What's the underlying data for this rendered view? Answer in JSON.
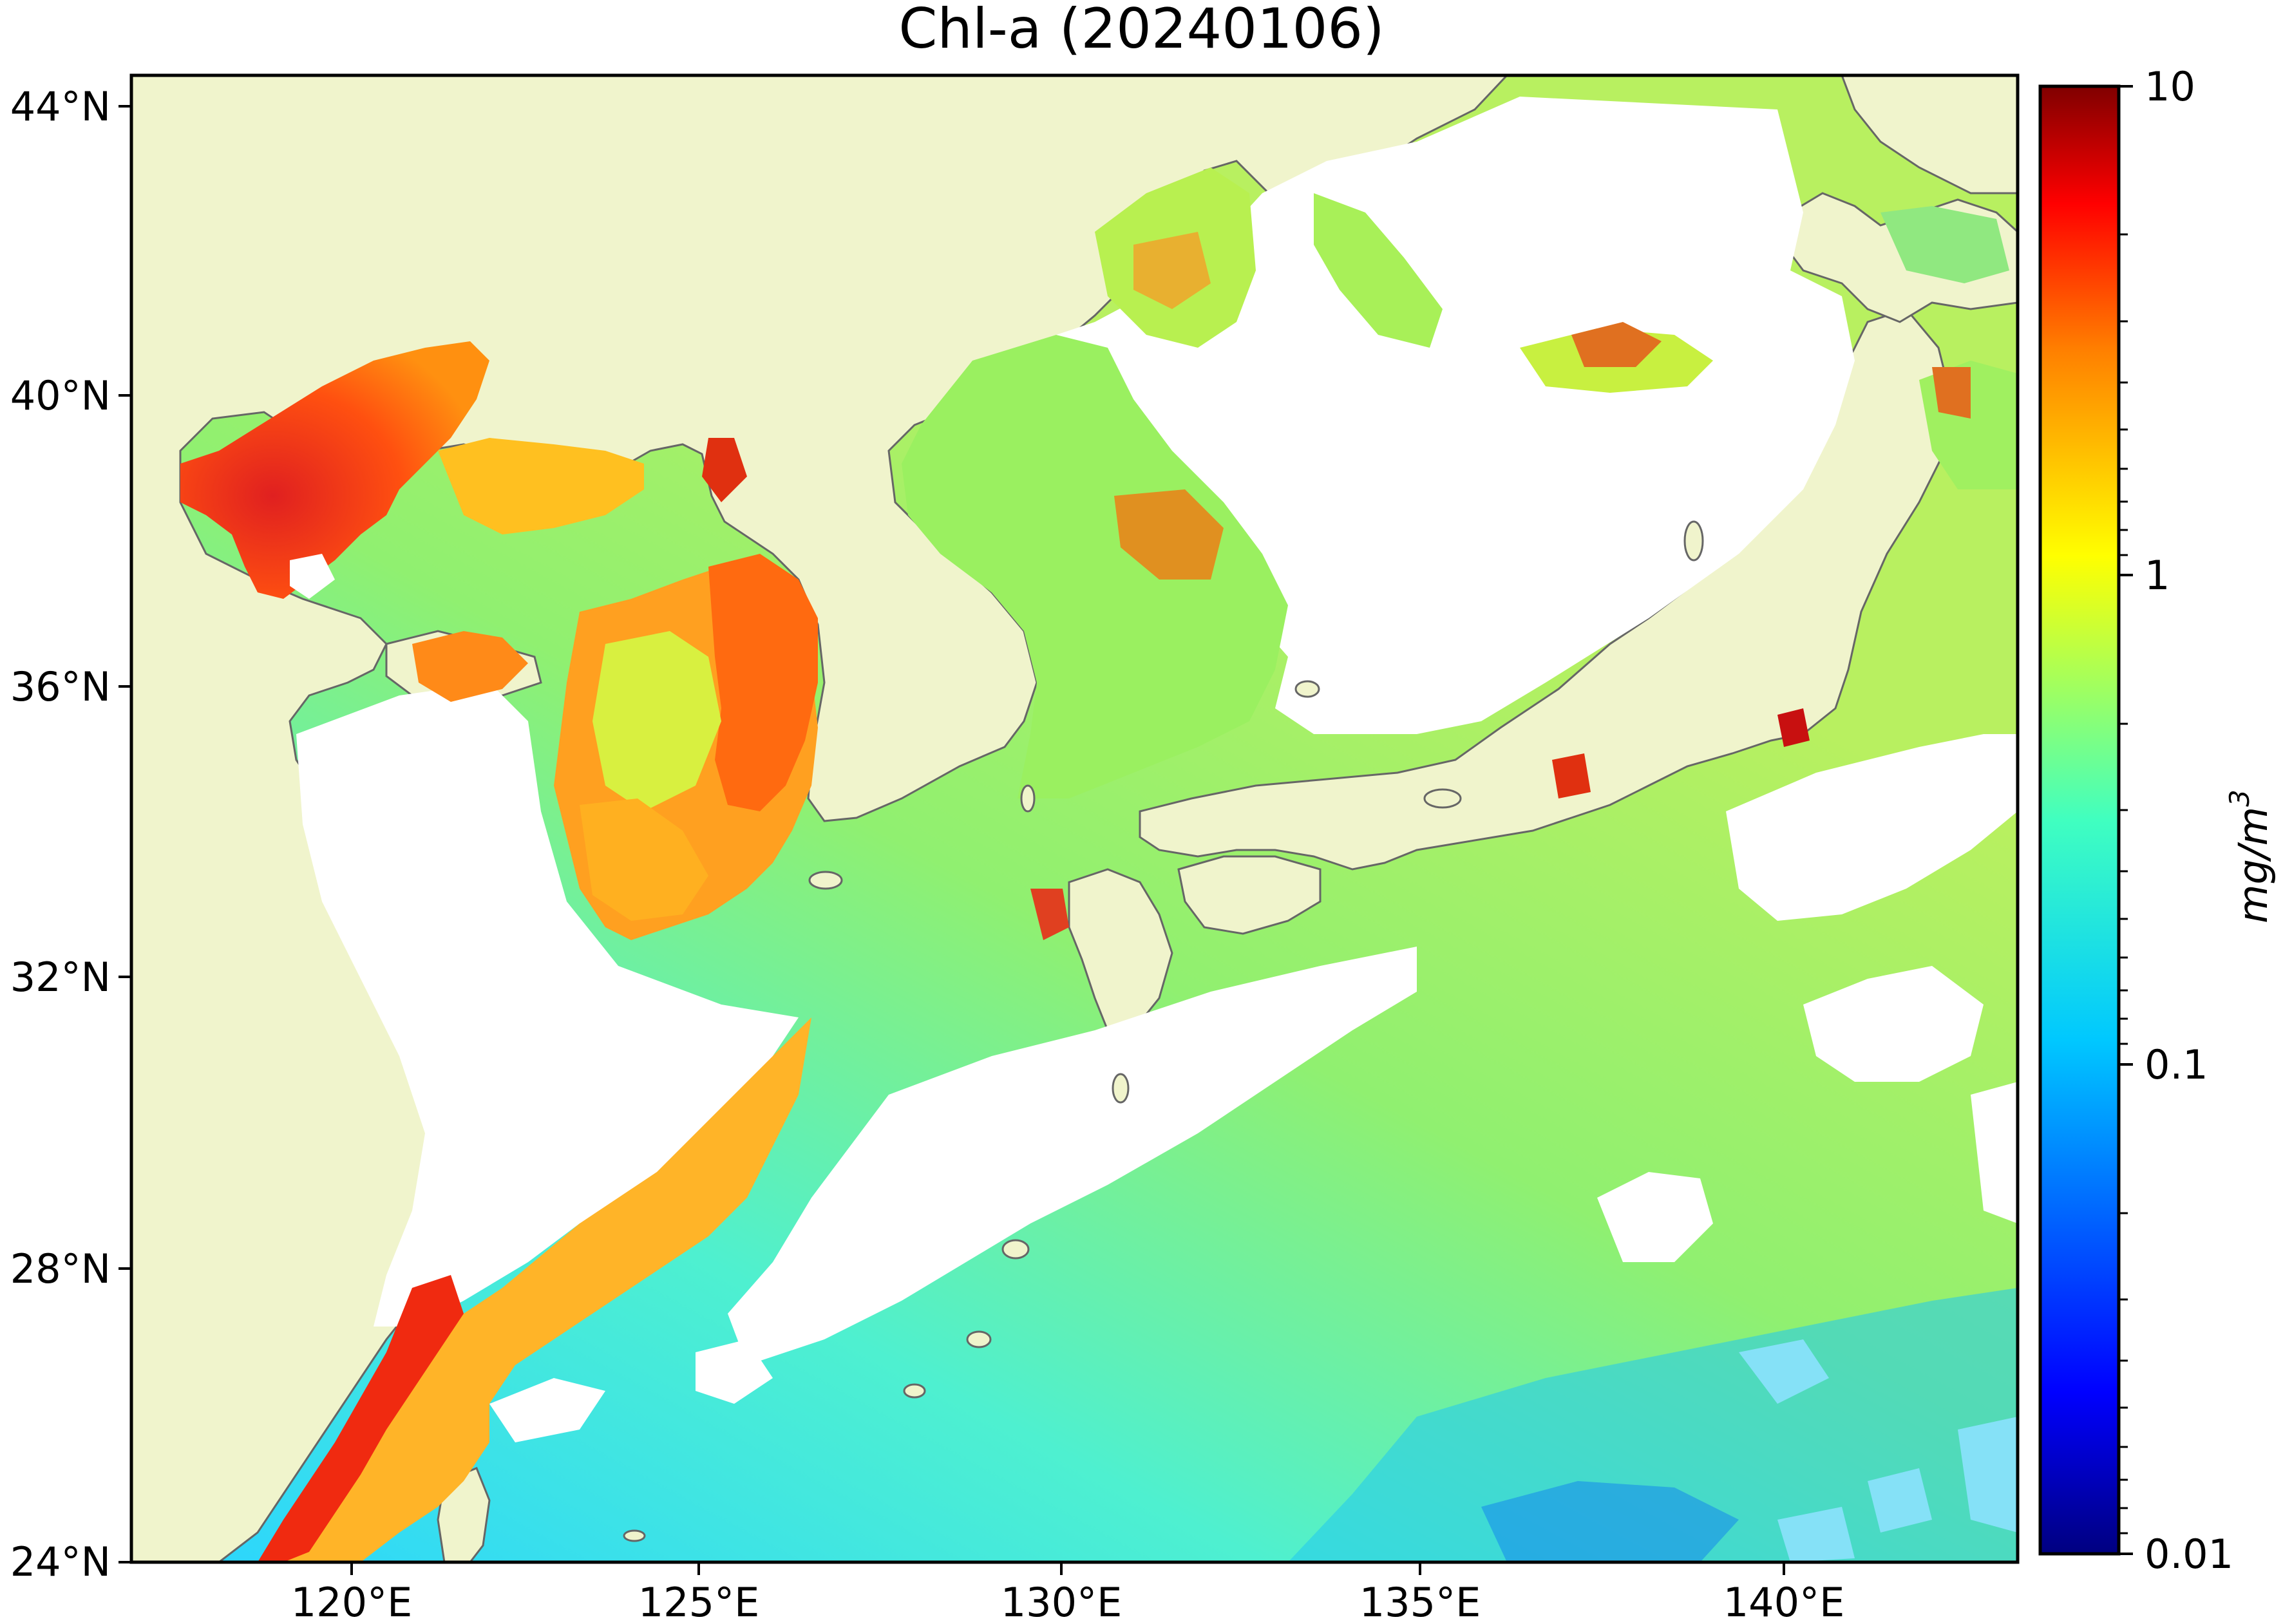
{
  "title": "Chl-a (20240106)",
  "map": {
    "land_color": "#f0f4cc",
    "coast_color": "#666666",
    "no_data_color": "#ffffff",
    "lat_labels": [
      "24°N",
      "28°N",
      "32°N",
      "36°N",
      "40°N",
      "44°N"
    ],
    "lon_labels": [
      "120°E",
      "125°E",
      "130°E",
      "135°E",
      "140°E"
    ]
  },
  "colorbar": {
    "label": "mg/m",
    "label_sup": "3",
    "scale": "log",
    "colormap": "jet",
    "tick_labels": [
      "10",
      "1",
      "0.1",
      "0.01"
    ],
    "colors": [
      "#000080",
      "#0000ff",
      "#0080ff",
      "#00ffff",
      "#80ff80",
      "#ffff00",
      "#ff8000",
      "#ff0000",
      "#800000"
    ]
  }
}
